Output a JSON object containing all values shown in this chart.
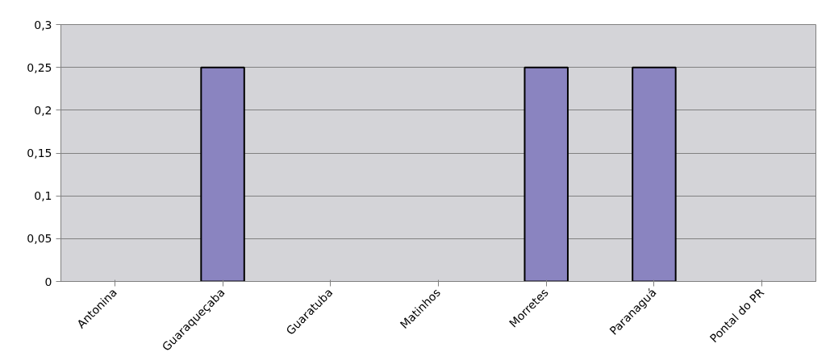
{
  "chart_data": {
    "type": "bar",
    "categories": [
      "Antonina",
      "Guaraqueçaba",
      "Guaratuba",
      "Matinhos",
      "Morretes",
      "Paranaguá",
      "Pontal do PR"
    ],
    "values": [
      0,
      0.25,
      0,
      0,
      0.25,
      0.25,
      0
    ],
    "color": "#8a84c0",
    "ylim": [
      0,
      0.3
    ],
    "yticks": [
      {
        "value": 0,
        "label": "0"
      },
      {
        "value": 0.05,
        "label": "0,05"
      },
      {
        "value": 0.1,
        "label": "0,1"
      },
      {
        "value": 0.15,
        "label": "0,15"
      },
      {
        "value": 0.2,
        "label": "0,2"
      },
      {
        "value": 0.25,
        "label": "0,25"
      },
      {
        "value": 0.3,
        "label": "0,3"
      }
    ],
    "grid": "y"
  }
}
